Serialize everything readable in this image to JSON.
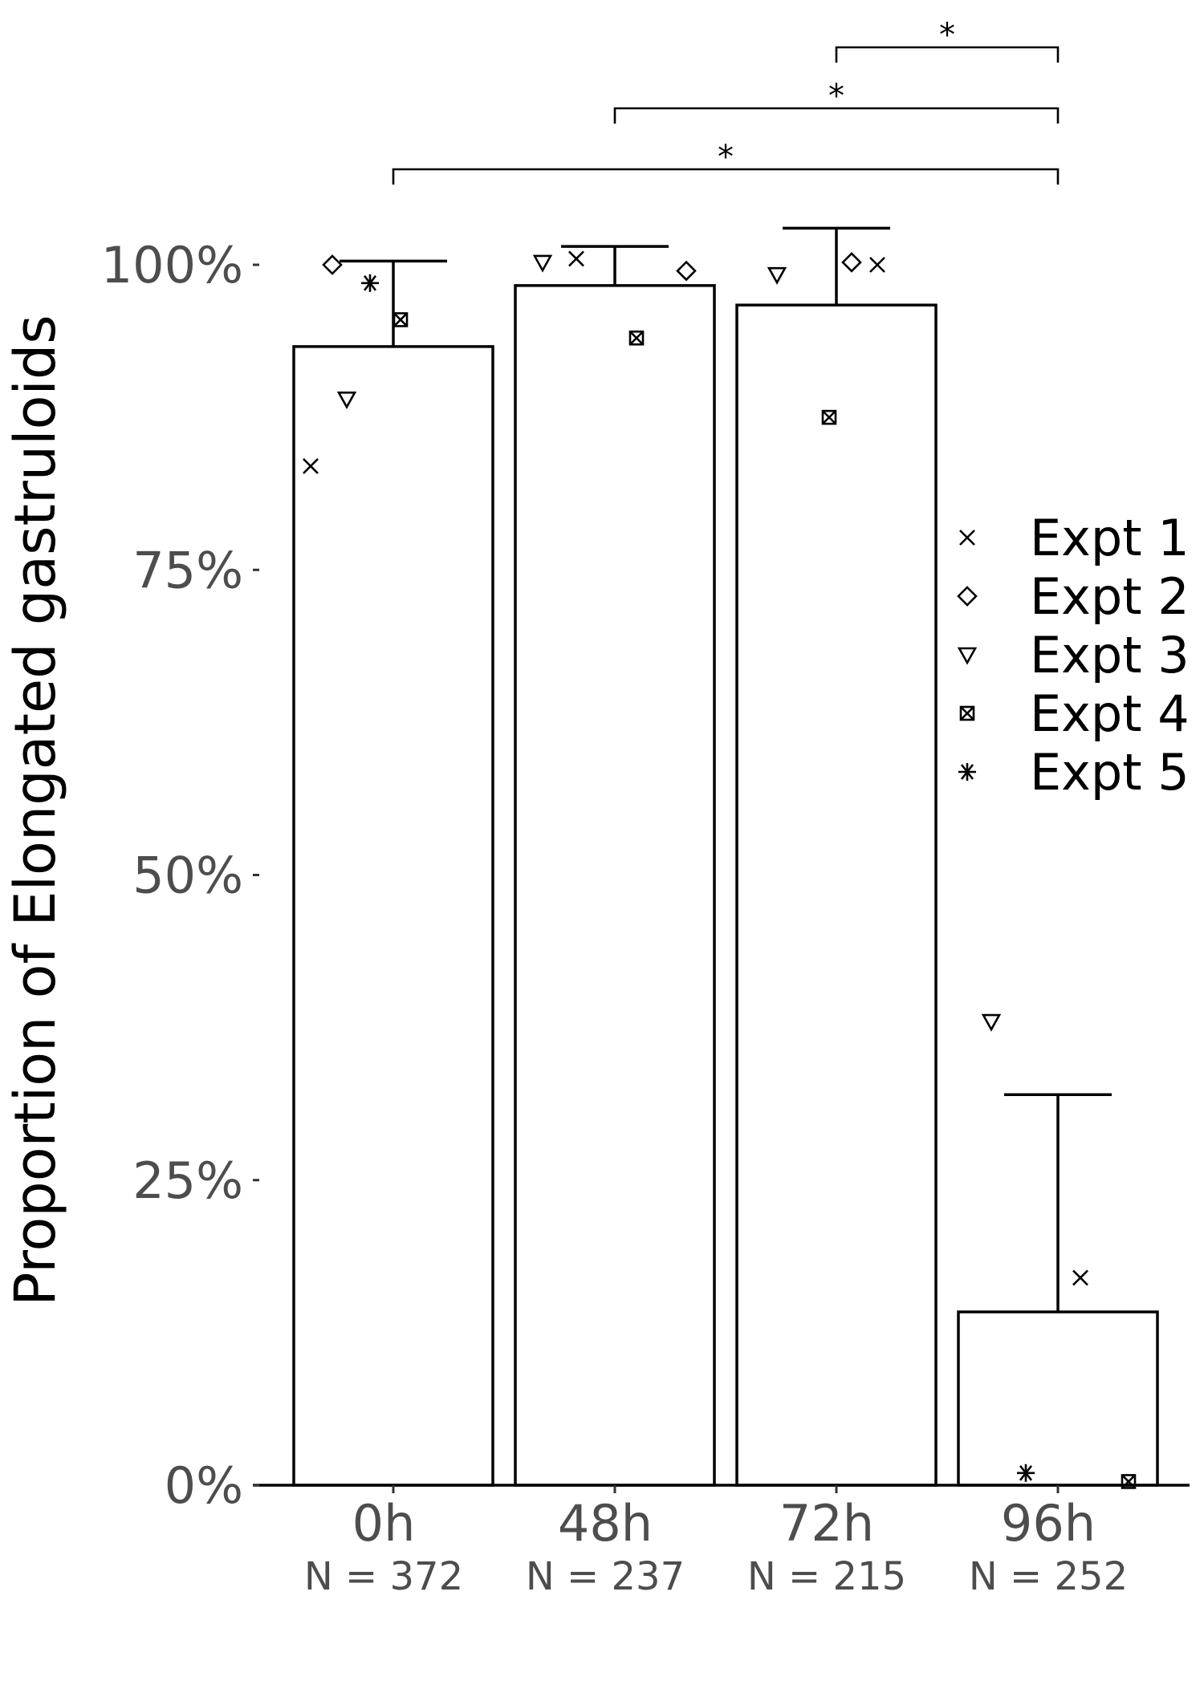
{
  "chart_data": {
    "type": "bar",
    "ylabel": "Proportion of Elongated gastruloids",
    "xlabel": "",
    "ylim": [
      0,
      100
    ],
    "yticks": [
      {
        "value": 0,
        "label": "0%"
      },
      {
        "value": 25,
        "label": "25%"
      },
      {
        "value": 50,
        "label": "50%"
      },
      {
        "value": 75,
        "label": "75%"
      },
      {
        "value": 100,
        "label": "100%"
      }
    ],
    "categories": [
      "0h",
      "48h",
      "72h",
      "96h"
    ],
    "n_labels": [
      "N = 372",
      "N = 237",
      "N = 215",
      "N = 252"
    ],
    "values": [
      93.3,
      98.3,
      96.7,
      14.2
    ],
    "error_upper": [
      100.3,
      101.5,
      103.0,
      32.0
    ],
    "points": [
      {
        "category": "0h",
        "expt": "Expt 1",
        "value": 83.5
      },
      {
        "category": "0h",
        "expt": "Expt 2",
        "value": 100.0
      },
      {
        "category": "0h",
        "expt": "Expt 3",
        "value": 89.0
      },
      {
        "category": "0h",
        "expt": "Expt 4",
        "value": 95.5
      },
      {
        "category": "0h",
        "expt": "Expt 5",
        "value": 98.5
      },
      {
        "category": "48h",
        "expt": "Expt 1",
        "value": 100.5
      },
      {
        "category": "48h",
        "expt": "Expt 2",
        "value": 99.5
      },
      {
        "category": "48h",
        "expt": "Expt 3",
        "value": 100.2
      },
      {
        "category": "48h",
        "expt": "Expt 4",
        "value": 94.0
      },
      {
        "category": "72h",
        "expt": "Expt 1",
        "value": 100.0
      },
      {
        "category": "72h",
        "expt": "Expt 2",
        "value": 100.2
      },
      {
        "category": "72h",
        "expt": "Expt 3",
        "value": 99.2
      },
      {
        "category": "72h",
        "expt": "Expt 4",
        "value": 87.5
      },
      {
        "category": "96h",
        "expt": "Expt 1",
        "value": 17.0
      },
      {
        "category": "96h",
        "expt": "Expt 3",
        "value": 38.0
      },
      {
        "category": "96h",
        "expt": "Expt 4",
        "value": 0.3
      },
      {
        "category": "96h",
        "expt": "Expt 5",
        "value": 1.0
      }
    ],
    "legend": {
      "placement": "right",
      "entries": [
        {
          "label": "Expt 1",
          "marker": "x-icon"
        },
        {
          "label": "Expt 2",
          "marker": "diamond-icon"
        },
        {
          "label": "Expt 3",
          "marker": "triangle-down-icon"
        },
        {
          "label": "Expt 4",
          "marker": "boxed-x-icon"
        },
        {
          "label": "Expt 5",
          "marker": "asterisk-icon"
        }
      ]
    },
    "significance": [
      {
        "from": "72h",
        "to": "96h",
        "label": "*"
      },
      {
        "from": "48h",
        "to": "96h",
        "label": "*"
      },
      {
        "from": "0h",
        "to": "96h",
        "label": "*"
      }
    ],
    "grid": false,
    "colors": {
      "bar_fill": "#ffffff",
      "bar_stroke": "#000000",
      "tick_text": "#4d4d4d"
    }
  }
}
